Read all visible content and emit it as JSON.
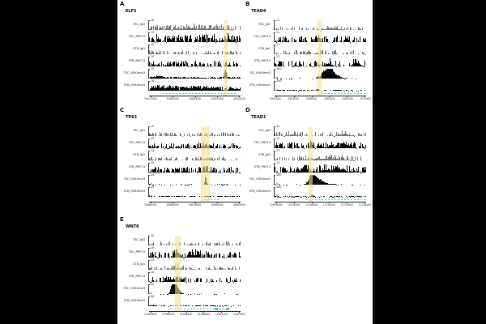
{
  "figure": {
    "background_color": "#000000",
    "canvas_color": "#ffffff",
    "highlight_color": "#f3e294",
    "gene_model_color": "#55bcd9",
    "igg_bar_color": "#757575",
    "chip_bar_color": "#060606",
    "baseline_label": "0",
    "track_labels": [
      "TSC_IgG",
      "TSC_PHF13",
      "STB_IgG",
      "STB_PHF13",
      "TSC_H3K4me3",
      "STB_H3K4me3"
    ]
  },
  "chart_data": [
    {
      "type": "bar",
      "panel": "A",
      "gene": "ELF5",
      "xticks": [
        "34470000",
        "34480000",
        "34490000",
        "34500000",
        "34510000"
      ],
      "highlight": {
        "left": 0.815,
        "width": 0.04
      },
      "gene_model": {
        "start": 0.15,
        "end": 0.95,
        "exons": []
      },
      "tracks": [
        {
          "label": "TSC_IgG",
          "ymax": "10",
          "style": "igg",
          "density": 0.55,
          "base": 0.05,
          "spikes": 0.45,
          "peaks": [
            {
              "pos": 0.55,
              "w": 0.2,
              "h": 0.15
            }
          ]
        },
        {
          "label": "TSC_PHF13",
          "ymax": "10",
          "style": "chip",
          "density": 0.8,
          "base": 0.1,
          "spikes": 0.75,
          "peaks": [
            {
              "pos": 0.83,
              "w": 0.03,
              "h": 0.35
            }
          ]
        },
        {
          "label": "STB_IgG",
          "ymax": "10",
          "style": "igg",
          "density": 0.5,
          "base": 0.04,
          "spikes": 0.35,
          "peaks": []
        },
        {
          "label": "STB_PHF13",
          "ymax": "10",
          "style": "chip",
          "density": 0.7,
          "base": 0.08,
          "spikes": 0.5,
          "peaks": []
        },
        {
          "label": "TSC_H3K4me3",
          "ymax": "70",
          "style": "chip",
          "density": 0.9,
          "base": 0.06,
          "spikes": 0.12,
          "peaks": [
            {
              "pos": 0.83,
              "w": 0.012,
              "h": 1.0
            },
            {
              "pos": 0.1,
              "w": 0.05,
              "h": 0.15
            }
          ]
        },
        {
          "label": "STB_H3K4me3",
          "ymax": "70",
          "style": "chip",
          "density": 0.85,
          "base": 0.1,
          "spikes": 0.3,
          "peaks": [
            {
              "pos": 0.15,
              "w": 0.1,
              "h": 0.25
            },
            {
              "pos": 0.6,
              "w": 0.15,
              "h": 0.2
            }
          ]
        }
      ]
    },
    {
      "type": "bar",
      "panel": "B",
      "gene": "TEAD4",
      "xticks": [
        "2950000",
        "2954000",
        "2958000",
        "2962000",
        "2966000",
        "2970000"
      ],
      "highlight": {
        "left": 0.465,
        "width": 0.048
      },
      "gene_model": {
        "start": 0.51,
        "end": 0.99,
        "exons": []
      },
      "tracks": [
        {
          "label": "TSC_IgG",
          "ymax": "11",
          "style": "igg",
          "density": 0.4,
          "base": 0.04,
          "spikes": 0.35,
          "peaks": [
            {
              "pos": 0.62,
              "w": 0.06,
              "h": 0.2
            }
          ]
        },
        {
          "label": "TSC_PHF13",
          "ymax": "11",
          "style": "chip",
          "density": 0.55,
          "base": 0.07,
          "spikes": 0.6,
          "peaks": [
            {
              "pos": 0.47,
              "w": 0.02,
              "h": 0.5
            }
          ]
        },
        {
          "label": "STB_IgG",
          "ymax": "11",
          "style": "igg",
          "density": 0.45,
          "base": 0.04,
          "spikes": 0.4,
          "peaks": []
        },
        {
          "label": "STB_PHF13",
          "ymax": "11",
          "style": "chip",
          "density": 0.5,
          "base": 0.07,
          "spikes": 0.55,
          "peaks": [
            {
              "pos": 0.58,
              "w": 0.03,
              "h": 0.3
            },
            {
              "pos": 0.9,
              "w": 0.03,
              "h": 0.4
            }
          ]
        },
        {
          "label": "TSC_H3K4me3",
          "ymax": "100",
          "style": "chip",
          "density": 0.3,
          "base": 0.02,
          "spikes": 0.03,
          "peaks": [
            {
              "pos": 0.52,
              "w": 0.018,
              "h": 0.55
            },
            {
              "pos": 0.57,
              "w": 0.03,
              "h": 1.0
            },
            {
              "pos": 0.62,
              "w": 0.025,
              "h": 0.8
            },
            {
              "pos": 0.68,
              "w": 0.04,
              "h": 0.35
            },
            {
              "pos": 0.47,
              "w": 0.01,
              "h": 0.3
            }
          ]
        },
        {
          "label": "STB_H3K4me3",
          "ymax": "100",
          "style": "chip",
          "density": 0.6,
          "base": 0.04,
          "spikes": 0.05,
          "peaks": [
            {
              "pos": 0.47,
              "w": 0.01,
              "h": 0.1
            }
          ]
        }
      ]
    },
    {
      "type": "bar",
      "panel": "C",
      "gene": "TP63",
      "xticks": [
        "18960000",
        "18968000",
        "18976000",
        "18984000",
        "18992000"
      ],
      "highlight": {
        "left": 0.565,
        "width": 0.095
      },
      "gene_model": {
        "start": 0.6,
        "end": 0.78,
        "exons": []
      },
      "tracks": [
        {
          "label": "TSC_IgG",
          "ymax": "15",
          "style": "igg",
          "density": 0.6,
          "base": 0.04,
          "spikes": 0.35,
          "peaks": []
        },
        {
          "label": "TSC_PHF13",
          "ymax": "15",
          "style": "chip",
          "density": 0.75,
          "base": 0.08,
          "spikes": 0.45,
          "peaks": [
            {
              "pos": 0.6,
              "w": 0.04,
              "h": 0.2
            }
          ]
        },
        {
          "label": "STB_IgG",
          "ymax": "15",
          "style": "igg",
          "density": 0.6,
          "base": 0.04,
          "spikes": 0.35,
          "peaks": [
            {
              "pos": 0.6,
              "w": 0.05,
              "h": 0.2
            }
          ]
        },
        {
          "label": "STB_PHF13",
          "ymax": "15",
          "style": "chip",
          "density": 0.7,
          "base": 0.08,
          "spikes": 0.5,
          "peaks": [
            {
              "pos": 0.62,
              "w": 0.04,
              "h": 0.25
            }
          ]
        },
        {
          "label": "TSC_H3K4me3",
          "ymax": "45",
          "style": "chip",
          "density": 0.3,
          "base": 0.03,
          "spikes": 0.03,
          "peaks": [
            {
              "pos": 0.615,
              "w": 0.008,
              "h": 1.0
            }
          ]
        },
        {
          "label": "STB_H3K4me3",
          "ymax": "45",
          "style": "chip",
          "density": 0.6,
          "base": 0.05,
          "spikes": 0.08,
          "peaks": []
        }
      ]
    },
    {
      "type": "bar",
      "panel": "D",
      "gene": "TEAD1",
      "xticks": [
        "12696000",
        "12702000",
        "12708000",
        "12714000",
        "12720000",
        "12726000"
      ],
      "highlight": {
        "left": 0.375,
        "width": 0.044
      },
      "gene_model": {
        "start": 0.34,
        "end": 1.0,
        "exons": []
      },
      "tracks": [
        {
          "label": "TSC_IgG",
          "ymax": "15",
          "style": "igg",
          "density": 0.45,
          "base": 0.04,
          "spikes": 0.4,
          "peaks": [
            {
              "pos": 0.2,
              "w": 0.05,
              "h": 0.2
            },
            {
              "pos": 0.75,
              "w": 0.05,
              "h": 0.25
            }
          ]
        },
        {
          "label": "TSC_PHF13",
          "ymax": "15",
          "style": "chip",
          "density": 0.7,
          "base": 0.08,
          "spikes": 0.55,
          "peaks": [
            {
              "pos": 0.4,
              "w": 0.015,
              "h": 0.55
            },
            {
              "pos": 0.7,
              "w": 0.1,
              "h": 0.2
            }
          ]
        },
        {
          "label": "STB_IgG",
          "ymax": "15",
          "style": "igg",
          "density": 0.55,
          "base": 0.04,
          "spikes": 0.45,
          "peaks": [
            {
              "pos": 0.55,
              "w": 0.15,
              "h": 0.2
            }
          ]
        },
        {
          "label": "STB_PHF13",
          "ymax": "15",
          "style": "chip",
          "density": 0.7,
          "base": 0.08,
          "spikes": 0.55,
          "peaks": [
            {
              "pos": 0.33,
              "w": 0.04,
              "h": 0.4
            },
            {
              "pos": 0.55,
              "w": 0.05,
              "h": 0.3
            },
            {
              "pos": 0.72,
              "w": 0.05,
              "h": 0.35
            }
          ]
        },
        {
          "label": "TSC_H3K4me3",
          "ymax": "160",
          "style": "chip",
          "density": 0.3,
          "base": 0.02,
          "spikes": 0.03,
          "peaks": [
            {
              "pos": 0.4,
              "w": 0.03,
              "h": 1.0
            },
            {
              "pos": 0.46,
              "w": 0.04,
              "h": 0.6
            },
            {
              "pos": 0.52,
              "w": 0.05,
              "h": 0.25
            },
            {
              "pos": 0.65,
              "w": 0.02,
              "h": 0.08
            }
          ]
        },
        {
          "label": "STB_H3K4me3",
          "ymax": "160",
          "style": "chip",
          "density": 0.6,
          "base": 0.03,
          "spikes": 0.05,
          "peaks": [
            {
              "pos": 0.4,
              "w": 0.012,
              "h": 0.18
            }
          ]
        }
      ]
    },
    {
      "type": "bar",
      "panel": "E",
      "gene": "WNT6",
      "xticks": [
        "21985600",
        "21986000",
        "21986400",
        "21986800",
        "21987200",
        "21987600"
      ],
      "highlight": {
        "left": 0.28,
        "width": 0.068
      },
      "gene_model": {
        "start": 0.24,
        "end": 0.88,
        "exons": [
          0.72,
          0.84
        ]
      },
      "tracks": [
        {
          "label": "TSC_IgG",
          "ymax": "10",
          "style": "igg",
          "density": 0.5,
          "base": 0.04,
          "spikes": 0.4,
          "peaks": []
        },
        {
          "label": "TSC_PHF13",
          "ymax": "10",
          "style": "chip",
          "density": 0.6,
          "base": 0.08,
          "spikes": 0.55,
          "peaks": [
            {
              "pos": 0.3,
              "w": 0.02,
              "h": 0.65
            },
            {
              "pos": 0.5,
              "w": 0.05,
              "h": 0.3
            }
          ]
        },
        {
          "label": "STB_IgG",
          "ymax": "10",
          "style": "igg",
          "density": 0.45,
          "base": 0.04,
          "spikes": 0.35,
          "peaks": [
            {
              "pos": 0.3,
              "w": 0.03,
              "h": 0.25
            }
          ]
        },
        {
          "label": "STB_PHF13",
          "ymax": "10",
          "style": "chip",
          "density": 0.55,
          "base": 0.07,
          "spikes": 0.45,
          "peaks": [
            {
              "pos": 0.25,
              "w": 0.05,
              "h": 0.3
            }
          ]
        },
        {
          "label": "TSC_H3K4me3",
          "ymax": "60",
          "style": "chip",
          "density": 0.3,
          "base": 0.02,
          "spikes": 0.03,
          "peaks": [
            {
              "pos": 0.27,
              "w": 0.02,
              "h": 1.0
            },
            {
              "pos": 0.3,
              "w": 0.03,
              "h": 0.7
            },
            {
              "pos": 0.24,
              "w": 0.015,
              "h": 0.5
            }
          ]
        },
        {
          "label": "STB_H3K4me3",
          "ymax": "60",
          "style": "chip",
          "density": 0.55,
          "base": 0.04,
          "spikes": 0.08,
          "peaks": [
            {
              "pos": 0.05,
              "w": 0.01,
              "h": 0.12
            }
          ]
        }
      ]
    }
  ]
}
